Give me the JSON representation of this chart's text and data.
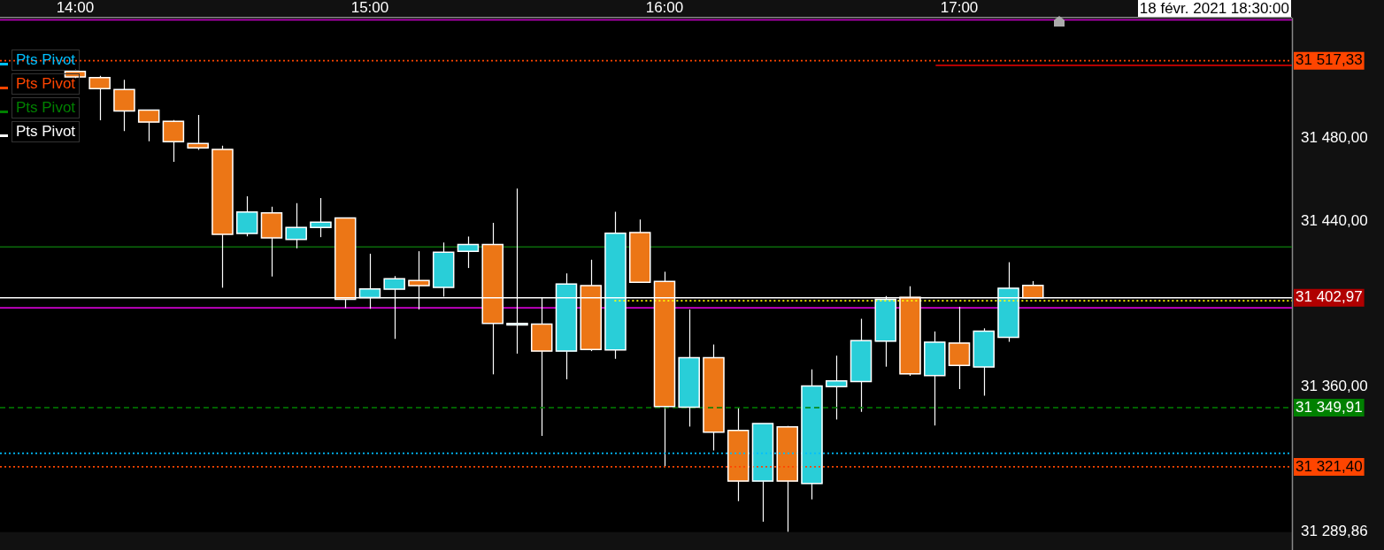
{
  "chart_data": {
    "type": "candlestick",
    "legend": "top left",
    "grid": false,
    "marker": "none",
    "xlim": [
      13.745,
      18.129
    ],
    "xticks": [
      {
        "value": 14,
        "label": "14:00"
      },
      {
        "value": 15,
        "label": "15:00"
      },
      {
        "value": 16,
        "label": "16:00"
      },
      {
        "value": 17,
        "label": "17:00"
      }
    ],
    "ylim": [
      31289.86,
      31538
    ],
    "yticks": [
      {
        "value": 31289.86,
        "label": "31 289,86"
      },
      {
        "value": 31360,
        "label": "31 360,00"
      },
      {
        "value": 31440,
        "label": "31 440,00"
      },
      {
        "value": 31480,
        "label": "31 480,00"
      }
    ],
    "series": [
      {
        "x": [
          14,
          14.0833,
          14.1667,
          14.25,
          14.3333,
          14.4167,
          14.5,
          14.5833,
          14.6667,
          14.75,
          14.8333,
          14.9167,
          15,
          15.0833,
          15.1667,
          15.25,
          15.3333,
          15.4167,
          15.5,
          15.5833,
          15.6667,
          15.75,
          15.8333,
          15.9167,
          16,
          16.0833,
          16.1667,
          16.25,
          16.3333,
          16.4167,
          16.5,
          16.5833,
          16.6667,
          16.75,
          16.8333,
          16.9167,
          17,
          17.0833,
          17.1667,
          17.25
        ],
        "colors": [
          "#ec7616",
          "#ec7616",
          "#ec7616",
          "#ec7616",
          "#ec7616",
          "#ec7616",
          "#ec7616",
          "#29ced8",
          "#ec7616",
          "#29ced8",
          "#29ced8",
          "#ec7616",
          "#29ced8",
          "#29ced8",
          "#ec7616",
          "#29ced8",
          "#29ced8",
          "#ec7616",
          "#29ced8",
          "#ec7616",
          "#29ced8",
          "#ec7616",
          "#29ced8",
          "#ec7616",
          "#ec7616",
          "#29ced8",
          "#ec7616",
          "#ec7616",
          "#29ced8",
          "#ec7616",
          "#29ced8",
          "#29ced8",
          "#29ced8",
          "#29ced8",
          "#ec7616",
          "#29ced8",
          "#ec7616",
          "#29ced8",
          "#29ced8",
          "#ec7616"
        ],
        "ohlc": [
          [
            31512.2,
            31513,
            31509,
            31509.5
          ],
          [
            31509.2,
            31510,
            31488.6,
            31503.9
          ],
          [
            31503.4,
            31508.1,
            31483.4,
            31493.1
          ],
          [
            31493.5,
            31493.5,
            31478.5,
            31487.7
          ],
          [
            31488.1,
            31488.7,
            31468.5,
            31478.2
          ],
          [
            31477.4,
            31491.2,
            31474.3,
            31475.3
          ],
          [
            31474.5,
            31476.3,
            31407.8,
            31433.6
          ],
          [
            31434,
            31451.9,
            31432.6,
            31444.3
          ],
          [
            31443.9,
            31446.9,
            31413.2,
            31431.9
          ],
          [
            31431.1,
            31448.6,
            31426.8,
            31436.9
          ],
          [
            31436.9,
            31451.1,
            31432.2,
            31439.4
          ],
          [
            31441.4,
            31441.4,
            31398,
            31402.2
          ],
          [
            31403.1,
            31424.2,
            31397.6,
            31407.2
          ],
          [
            31407.1,
            31413.4,
            31383.1,
            31412.1
          ],
          [
            31411.3,
            31425.4,
            31397.3,
            31408.8
          ],
          [
            31408,
            31429.6,
            31403.5,
            31424.9
          ],
          [
            31425.3,
            31432.5,
            31417.3,
            31428.6
          ],
          [
            31428.6,
            31439.1,
            31366,
            31390.6
          ],
          [
            31389.8,
            31455.6,
            31376,
            31390.6
          ],
          [
            31390.2,
            31403.2,
            31336.3,
            31377.2
          ],
          [
            31377.2,
            31414.7,
            31363.6,
            31409.6
          ],
          [
            31408.8,
            31421.3,
            31377.2,
            31378
          ],
          [
            31377.8,
            31444.4,
            31373.5,
            31434.1
          ],
          [
            31434.4,
            31440.7,
            31410.4,
            31410.4
          ],
          [
            31410.8,
            31415.5,
            31321.8,
            31350.5
          ],
          [
            31350.1,
            31397.3,
            31340.8,
            31374
          ],
          [
            31374,
            31380.4,
            31329.2,
            31338.1
          ],
          [
            31338.9,
            31349.8,
            31304.8,
            31314.5
          ],
          [
            31314.5,
            31342.2,
            31294.9,
            31342.2
          ],
          [
            31340.6,
            31341.1,
            31290,
            31314.5
          ],
          [
            31313.3,
            31368.4,
            31305.7,
            31360.4
          ],
          [
            31360.1,
            31375,
            31344.2,
            31362.8
          ],
          [
            31362.5,
            31392.8,
            31347.9,
            31382.3
          ],
          [
            31382,
            31403.8,
            31369.7,
            31402.2
          ],
          [
            31403.2,
            31408.5,
            31365.3,
            31366.2
          ],
          [
            31365.4,
            31386.7,
            31341.3,
            31381.5
          ],
          [
            31381.1,
            31398.6,
            31358.9,
            31370.3
          ],
          [
            31369.6,
            31388.2,
            31355.7,
            31386.8
          ],
          [
            31383.9,
            31420.1,
            31381.7,
            31407.5
          ],
          [
            31408.9,
            31411,
            31402.97,
            31402.97
          ]
        ]
      },
      {
        "type": "line",
        "name": "Pts Pivot",
        "color": "#00bfff",
        "line_style": "dotted",
        "x": [
          13.745,
          18.129
        ],
        "values": [
          31327.9,
          31327.9
        ]
      },
      {
        "type": "line",
        "name": "Pts Pivot",
        "color": "#ff4500",
        "line_style": "dotted",
        "x": [
          13.745,
          18.129
        ],
        "values": [
          31321.4,
          31321.4
        ],
        "value_labels": [
          null,
          "31 321,40"
        ]
      },
      {
        "type": "line",
        "name": "Pts Pivot",
        "color": "#008000",
        "line_style": "dashed",
        "x": [
          13.745,
          18.129
        ],
        "values": [
          31349.91,
          31349.91
        ],
        "value_labels": [
          null,
          "31 349,91"
        ]
      },
      {
        "type": "line",
        "name": "Pts Pivot",
        "color": "#ffffff",
        "line_style": "solid",
        "x": [
          13.745,
          18.129
        ],
        "values": [
          31402.97,
          31402.97
        ],
        "value_labels": [
          null,
          "31 402,97"
        ]
      },
      {
        "type": "line",
        "color": "#ffff00",
        "line_style": "dotted",
        "x": [
          15.83,
          18.129
        ],
        "values": [
          31401.5,
          31401.5
        ]
      },
      {
        "type": "line",
        "color": "#cc0000",
        "line_style": "solid",
        "x": [
          16.92,
          18.129
        ],
        "values": [
          31515.1,
          31515.1
        ]
      }
    ],
    "ref_lines": [
      {
        "axis": "y",
        "value": 31517.33,
        "label": "31 517,33",
        "color": "#ff4500",
        "line_style": "dotted"
      },
      {
        "axis": "y",
        "value": 31427.5,
        "color": "#0b6b0b",
        "line_style": "solid"
      },
      {
        "axis": "y",
        "value": 31398.1,
        "color": "#cc00cc",
        "line_style": "solid"
      },
      {
        "axis": "y",
        "value": 31537,
        "color": "#cc00cc",
        "line_style": "solid"
      }
    ],
    "annotations": [
      "18 févr. 2021 18:30:00"
    ]
  }
}
